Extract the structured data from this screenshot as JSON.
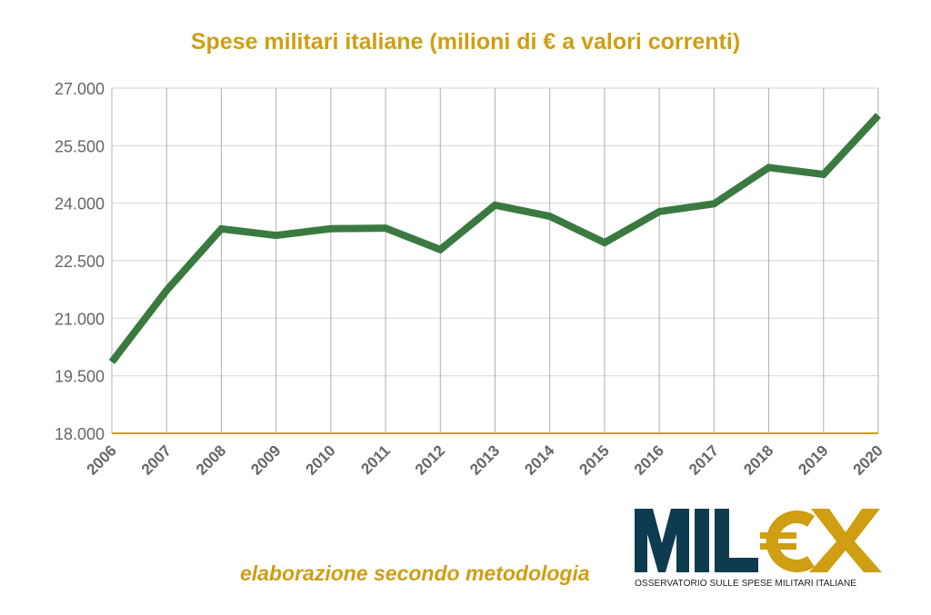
{
  "chart_data": {
    "type": "line",
    "title": "Spese militari italiane (milioni di € a valori correnti)",
    "xlabel": "",
    "ylabel": "",
    "ylim": [
      18000,
      27000
    ],
    "yticks": [
      "18.000",
      "19.500",
      "21.000",
      "22.500",
      "24.000",
      "25.500",
      "27.000"
    ],
    "ytick_values": [
      18000,
      19500,
      21000,
      22500,
      24000,
      25500,
      27000
    ],
    "grid": true,
    "categories": [
      "2006",
      "2007",
      "2008",
      "2009",
      "2010",
      "2011",
      "2012",
      "2013",
      "2014",
      "2015",
      "2016",
      "2017",
      "2018",
      "2019",
      "2020"
    ],
    "series": [
      {
        "name": "Spese militari",
        "color": "#3a7a40",
        "values": [
          19860,
          21725,
          23330,
          23160,
          23335,
          23350,
          22790,
          23950,
          23660,
          22970,
          23780,
          23985,
          24930,
          24750,
          26290
        ]
      }
    ]
  },
  "footer": {
    "note": "elaborazione secondo metodologia"
  },
  "logo": {
    "text": "MIL€X",
    "tagline": "OSSERVATORIO SULLE SPESE MILITARI ITALIANE"
  },
  "colors": {
    "accent": "#cf9e12",
    "line": "#3a7a40",
    "logo_dark": "#0f3b4f",
    "axis_text": "#666666"
  }
}
